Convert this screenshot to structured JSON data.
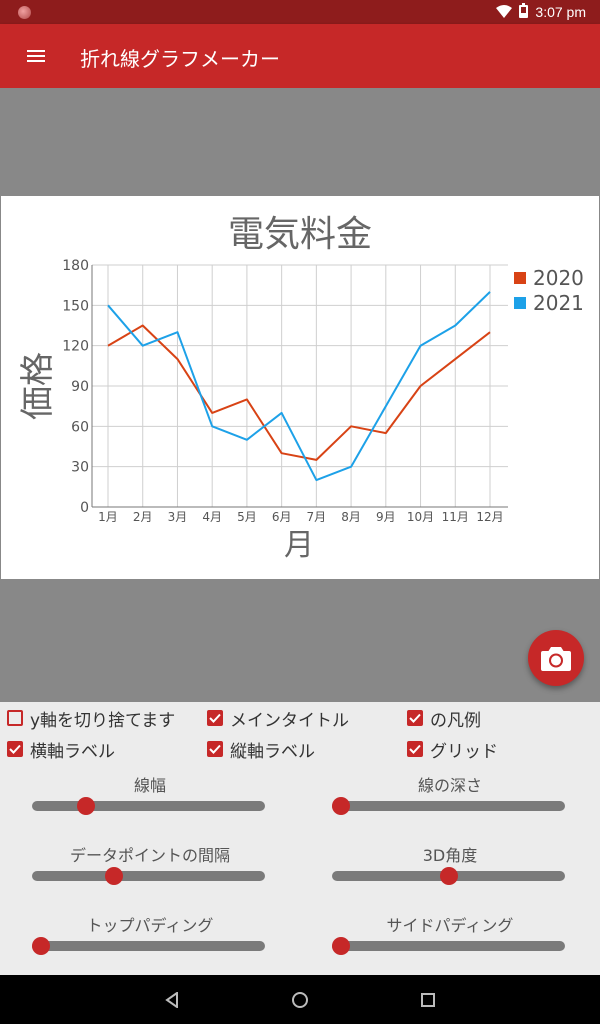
{
  "status": {
    "time": "3:07 pm"
  },
  "app_bar": {
    "title": "折れ線グラフメーカー"
  },
  "chart_data": {
    "type": "line",
    "title": "電気料金",
    "xlabel": "月",
    "ylabel": "価格",
    "categories": [
      "1月",
      "2月",
      "3月",
      "4月",
      "5月",
      "6月",
      "7月",
      "8月",
      "9月",
      "10月",
      "11月",
      "12月"
    ],
    "ylim": [
      0,
      180
    ],
    "yticks": [
      0,
      30,
      60,
      90,
      120,
      150,
      180
    ],
    "grid": true,
    "legend_position": "top-right",
    "series": [
      {
        "name": "2020",
        "color": "#d84315",
        "values": [
          120,
          135,
          110,
          70,
          80,
          40,
          35,
          60,
          55,
          90,
          110,
          130
        ]
      },
      {
        "name": "2021",
        "color": "#1da1e8",
        "values": [
          150,
          120,
          130,
          60,
          50,
          70,
          20,
          30,
          75,
          120,
          135,
          160
        ]
      }
    ]
  },
  "controls": {
    "checkboxes": [
      {
        "label": "y軸を切り捨てます",
        "checked": false
      },
      {
        "label": "メインタイトル",
        "checked": true
      },
      {
        "label": "の凡例",
        "checked": true
      },
      {
        "label": "横軸ラベル",
        "checked": true
      },
      {
        "label": "縦軸ラベル",
        "checked": true
      },
      {
        "label": "グリッド",
        "checked": true
      }
    ],
    "sliders": [
      {
        "label": "線幅",
        "value": 0.21
      },
      {
        "label": "線の深さ",
        "value": 0.0
      },
      {
        "label": "データポイントの間隔",
        "value": 0.34
      },
      {
        "label": "3D角度",
        "value": 0.5
      },
      {
        "label": "トップパディング",
        "value": 0.0
      },
      {
        "label": "サイドパディング",
        "value": 0.0
      }
    ]
  }
}
